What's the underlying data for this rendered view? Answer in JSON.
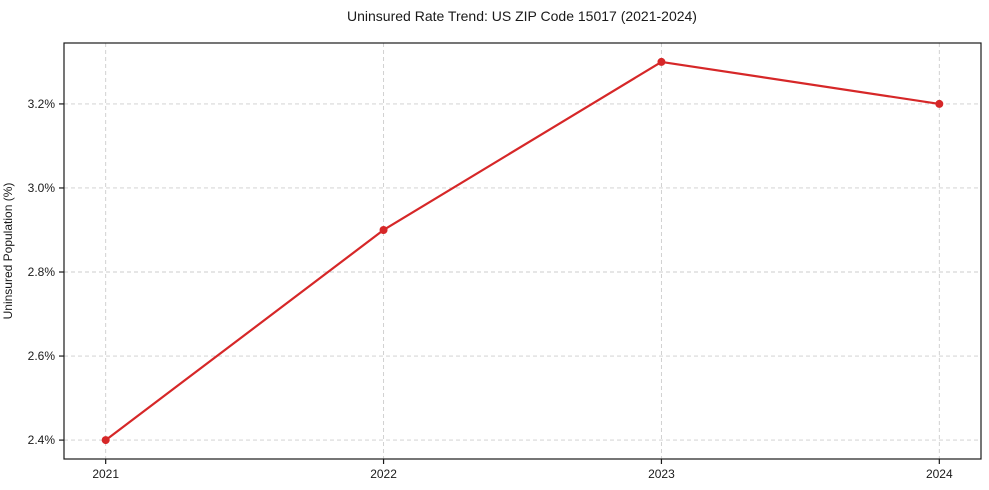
{
  "chart_data": {
    "type": "line",
    "title": "Uninsured Rate Trend: US ZIP Code 15017 (2021-2024)",
    "xlabel": "",
    "ylabel": "Uninsured Population (%)",
    "x": [
      2021,
      2022,
      2023,
      2024
    ],
    "series": [
      {
        "name": "uninsured-rate",
        "values": [
          2.4,
          2.9,
          3.3,
          3.2
        ],
        "color": "#d62728",
        "marker": "circle",
        "line_style": "solid"
      }
    ],
    "x_tick_labels": [
      "2021",
      "2022",
      "2023",
      "2024"
    ],
    "y_ticks": [
      2.4,
      2.6,
      2.8,
      3.0,
      3.2
    ],
    "y_tick_labels": [
      "2.4%",
      "2.6%",
      "2.8%",
      "3.0%",
      "3.2%"
    ],
    "xlim": [
      2020.85,
      2024.15
    ],
    "ylim": [
      2.355,
      3.345
    ],
    "grid": true,
    "grid_style": "dashed",
    "grid_color": "#cccccc",
    "spine_color": "#1a1a1a",
    "tick_color": "#1a1a1a",
    "background_color": "#ffffff",
    "legend": "none"
  }
}
